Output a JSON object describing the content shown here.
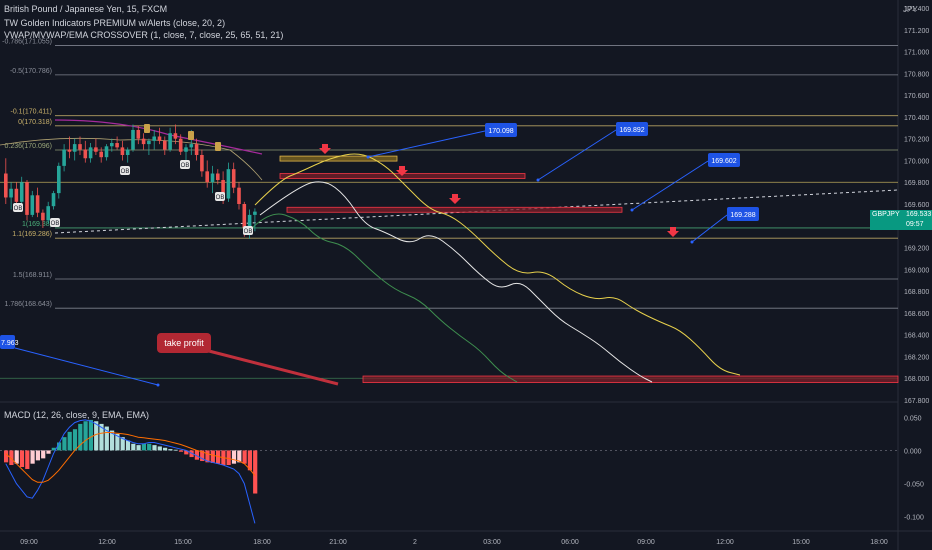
{
  "header": {
    "title": "British Pound / Japanese Yen, 15, FXCM",
    "indicators": [
      "TW Golden Indicators PREMIUM w/Alerts (close, 20, 2)",
      "VWAP/MVWAP/EMA CROSSOVER (1, close, 7, close, 25, 65, 51, 21)"
    ],
    "currency": "JPY"
  },
  "price_tag": {
    "symbol": "GBPJPY",
    "price": "169.533",
    "countdown": "09:57"
  },
  "macd_label": "MACD (12, 26, close, 9, EMA, EMA)",
  "annotation": {
    "text": "take profit"
  },
  "colors": {
    "bg": "#131722",
    "up": "#26a69a",
    "down": "#ef5350",
    "zone": "#f23645",
    "target": "#2962ff"
  },
  "chart_data": [
    {
      "type": "candlestick",
      "symbol": "GBPJPY",
      "ylim": [
        167.8,
        171.4
      ],
      "y_ticks": [
        "171.400",
        "171.200",
        "171.000",
        "170.800",
        "170.600",
        "170.400",
        "170.200",
        "170.000",
        "169.800",
        "169.600",
        "169.400",
        "169.200",
        "169.000",
        "168.800",
        "168.600",
        "168.400",
        "168.200",
        "168.000",
        "167.800"
      ],
      "x_ticks": [
        "09:00",
        "12:00",
        "15:00",
        "18:00",
        "21:00",
        "2",
        "03:00",
        "06:00",
        "09:00",
        "12:00",
        "15:00",
        "18:00"
      ],
      "fib_levels": [
        {
          "label": "-0.786(171.055)",
          "value": 171.055
        },
        {
          "label": "-0.5(170.786)",
          "value": 170.786
        },
        {
          "label": "-0.1(170.411)",
          "value": 170.411
        },
        {
          "label": "0(170.318)",
          "value": 170.318
        },
        {
          "label": "0.236(170.096)",
          "value": 170.096
        },
        {
          "label": "1(169.38)",
          "value": 169.38
        },
        {
          "label": "1.1(169.286)",
          "value": 169.286
        },
        {
          "label": "1.5(168.911)",
          "value": 168.911
        },
        {
          "label": "1.786(168.643)",
          "value": 168.643
        }
      ],
      "target_labels": [
        "170.098",
        "169.892",
        "169.602",
        "169.288",
        "7.963"
      ],
      "ob_label": "OB",
      "candles": [
        [
          169.88,
          170.02,
          169.6,
          169.66
        ],
        [
          169.66,
          169.8,
          169.55,
          169.74
        ],
        [
          169.74,
          169.8,
          169.58,
          169.62
        ],
        [
          169.62,
          169.85,
          169.6,
          169.8
        ],
        [
          169.8,
          169.82,
          169.45,
          169.5
        ],
        [
          169.5,
          169.72,
          169.48,
          169.68
        ],
        [
          169.68,
          169.75,
          169.48,
          169.52
        ],
        [
          169.52,
          169.55,
          169.38,
          169.45
        ],
        [
          169.45,
          169.62,
          169.42,
          169.58
        ],
        [
          169.58,
          169.72,
          169.55,
          169.7
        ],
        [
          169.7,
          169.98,
          169.65,
          169.95
        ],
        [
          169.95,
          170.15,
          169.9,
          170.1
        ],
        [
          170.1,
          170.22,
          170.02,
          170.08
        ],
        [
          170.08,
          170.2,
          170.0,
          170.15
        ],
        [
          170.15,
          170.22,
          170.05,
          170.1
        ],
        [
          170.1,
          170.18,
          169.98,
          170.02
        ],
        [
          170.02,
          170.16,
          169.98,
          170.12
        ],
        [
          170.12,
          170.2,
          170.05,
          170.08
        ],
        [
          170.08,
          170.12,
          169.98,
          170.03
        ],
        [
          170.03,
          170.15,
          170.0,
          170.13
        ],
        [
          170.13,
          170.2,
          170.08,
          170.16
        ],
        [
          170.16,
          170.22,
          170.1,
          170.12
        ],
        [
          170.12,
          170.18,
          170.0,
          170.05
        ],
        [
          170.05,
          170.12,
          169.98,
          170.1
        ],
        [
          170.1,
          170.33,
          170.08,
          170.28
        ],
        [
          170.28,
          170.32,
          170.15,
          170.2
        ],
        [
          170.2,
          170.25,
          170.1,
          170.15
        ],
        [
          170.15,
          170.2,
          170.05,
          170.18
        ],
        [
          170.18,
          170.28,
          170.1,
          170.22
        ],
        [
          170.22,
          170.3,
          170.15,
          170.18
        ],
        [
          170.18,
          170.22,
          170.05,
          170.1
        ],
        [
          170.1,
          170.3,
          170.08,
          170.25
        ],
        [
          170.25,
          170.33,
          170.15,
          170.2
        ],
        [
          170.2,
          170.24,
          170.05,
          170.08
        ],
        [
          170.08,
          170.15,
          169.95,
          170.12
        ],
        [
          170.12,
          170.28,
          170.05,
          170.15
        ],
        [
          170.15,
          170.2,
          170.0,
          170.05
        ],
        [
          170.05,
          170.1,
          169.85,
          169.9
        ],
        [
          169.9,
          170.0,
          169.75,
          169.8
        ],
        [
          169.8,
          169.95,
          169.7,
          169.88
        ],
        [
          169.88,
          169.92,
          169.78,
          169.82
        ],
        [
          169.82,
          169.9,
          169.6,
          169.65
        ],
        [
          169.65,
          169.98,
          169.62,
          169.92
        ],
        [
          169.92,
          169.98,
          169.7,
          169.75
        ],
        [
          169.75,
          169.8,
          169.55,
          169.6
        ],
        [
          169.6,
          169.62,
          169.3,
          169.38
        ],
        [
          169.38,
          169.55,
          169.28,
          169.5
        ],
        [
          169.5,
          169.56,
          169.35,
          169.53
        ]
      ],
      "zones": [
        {
          "kind": "supply",
          "low": 170.0,
          "high": 170.04
        },
        {
          "kind": "supply",
          "low": 169.84,
          "high": 169.88
        },
        {
          "kind": "supply",
          "low": 169.53,
          "high": 169.57
        },
        {
          "kind": "demand",
          "low": 167.96,
          "high": 168.02
        }
      ]
    },
    {
      "type": "histogram",
      "name": "MACD",
      "ylim": [
        -0.12,
        0.07
      ],
      "y_ticks": [
        "0.050",
        "0.000",
        "-0.050",
        "-0.100"
      ],
      "histogram": [
        -0.018,
        -0.022,
        -0.02,
        -0.025,
        -0.028,
        -0.02,
        -0.015,
        -0.012,
        -0.005,
        0.004,
        0.012,
        0.02,
        0.028,
        0.032,
        0.04,
        0.044,
        0.046,
        0.044,
        0.04,
        0.036,
        0.03,
        0.025,
        0.02,
        0.015,
        0.01,
        0.008,
        0.01,
        0.01,
        0.008,
        0.006,
        0.004,
        0.002,
        0.001,
        -0.002,
        -0.006,
        -0.01,
        -0.014,
        -0.016,
        -0.018,
        -0.019,
        -0.02,
        -0.022,
        -0.022,
        -0.02,
        -0.018,
        -0.02,
        -0.03,
        -0.065
      ],
      "macd": [
        -0.02,
        -0.035,
        -0.05,
        -0.06,
        -0.07,
        -0.072,
        -0.06,
        -0.045,
        -0.025,
        -0.005,
        0.01,
        0.025,
        0.035,
        0.042,
        0.045,
        0.046,
        0.044,
        0.04,
        0.035,
        0.03,
        0.026,
        0.022,
        0.018,
        0.015,
        0.012,
        0.01,
        0.01,
        0.012,
        0.012,
        0.01,
        0.008,
        0.006,
        0.004,
        0.002,
        0.0,
        -0.004,
        -0.008,
        -0.012,
        -0.016,
        -0.018,
        -0.02,
        -0.022,
        -0.025,
        -0.028,
        -0.035,
        -0.05,
        -0.08,
        -0.11
      ],
      "signal": [
        -0.005,
        -0.012,
        -0.02,
        -0.028,
        -0.036,
        -0.044,
        -0.048,
        -0.048,
        -0.045,
        -0.038,
        -0.03,
        -0.02,
        -0.01,
        0.0,
        0.008,
        0.015,
        0.02,
        0.024,
        0.026,
        0.027,
        0.027,
        0.026,
        0.025,
        0.024,
        0.022,
        0.02,
        0.019,
        0.018,
        0.017,
        0.016,
        0.015,
        0.013,
        0.011,
        0.009,
        0.006,
        0.003,
        0.0,
        -0.002,
        -0.005,
        -0.007,
        -0.009,
        -0.011,
        -0.012,
        -0.014,
        -0.016,
        -0.02,
        -0.028,
        -0.038
      ]
    }
  ]
}
